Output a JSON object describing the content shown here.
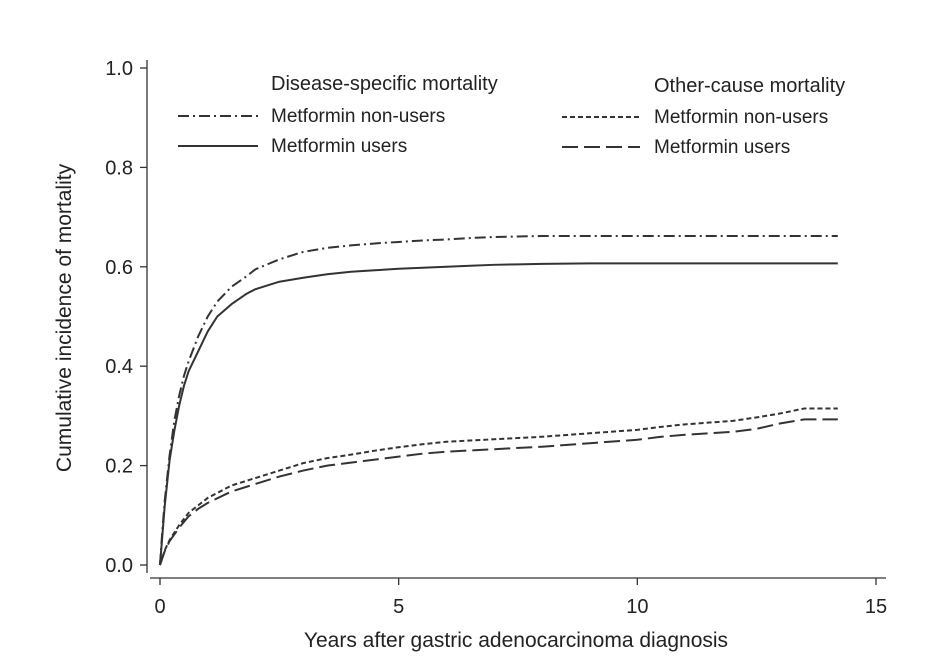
{
  "chart_data": {
    "type": "line",
    "xlabel": "Years after gastric adenocarcinoma diagnosis",
    "ylabel": "Cumulative incidence of mortality",
    "xlim": [
      0,
      15
    ],
    "ylim": [
      0,
      1.0
    ],
    "xticks": [
      "0",
      "5",
      "10",
      "15"
    ],
    "yticks": [
      "0.0",
      "0.2",
      "0.4",
      "0.6",
      "0.8",
      "1.0"
    ],
    "grid": false,
    "legend": {
      "placement": "top",
      "groups": [
        {
          "heading": "Disease-specific mortality",
          "entries": [
            "Metformin non-users",
            "Metformin users"
          ]
        },
        {
          "heading": "Other-cause mortality",
          "entries": [
            "Metformin non-users",
            "Metformin users"
          ]
        }
      ]
    },
    "series": [
      {
        "name": "Metformin non-users",
        "group": "Disease-specific mortality",
        "line_style": "dash-dot",
        "x": [
          0,
          0.05,
          0.1,
          0.2,
          0.3,
          0.4,
          0.5,
          0.6,
          0.8,
          1.0,
          1.2,
          1.5,
          1.8,
          2.0,
          2.5,
          3.0,
          3.5,
          4.0,
          4.5,
          5.0,
          5.5,
          6.0,
          6.5,
          7.0,
          7.5,
          8.0,
          9.0,
          10.0,
          11.0,
          12.0,
          13.0,
          14.2
        ],
        "y": [
          0,
          0.07,
          0.13,
          0.22,
          0.29,
          0.34,
          0.38,
          0.41,
          0.46,
          0.5,
          0.53,
          0.56,
          0.58,
          0.595,
          0.615,
          0.63,
          0.638,
          0.643,
          0.647,
          0.65,
          0.653,
          0.655,
          0.658,
          0.66,
          0.661,
          0.662,
          0.662,
          0.662,
          0.662,
          0.662,
          0.662,
          0.662
        ]
      },
      {
        "name": "Metformin users",
        "group": "Disease-specific mortality",
        "line_style": "solid",
        "x": [
          0,
          0.05,
          0.1,
          0.2,
          0.3,
          0.4,
          0.5,
          0.6,
          0.8,
          1.0,
          1.2,
          1.5,
          1.8,
          2.0,
          2.5,
          3.0,
          3.5,
          4.0,
          4.5,
          5.0,
          5.5,
          6.0,
          6.5,
          7.0,
          7.5,
          8.0,
          9.0,
          10.0,
          11.0,
          12.0,
          13.0,
          14.2
        ],
        "y": [
          0,
          0.06,
          0.12,
          0.21,
          0.27,
          0.32,
          0.36,
          0.39,
          0.43,
          0.47,
          0.5,
          0.525,
          0.545,
          0.555,
          0.57,
          0.578,
          0.585,
          0.59,
          0.593,
          0.596,
          0.598,
          0.6,
          0.602,
          0.604,
          0.605,
          0.606,
          0.607,
          0.607,
          0.607,
          0.607,
          0.607,
          0.607
        ]
      },
      {
        "name": "Metformin non-users",
        "group": "Other-cause mortality",
        "line_style": "short-dash",
        "x": [
          0,
          0.1,
          0.2,
          0.4,
          0.6,
          0.8,
          1.0,
          1.5,
          2.0,
          2.5,
          3.0,
          3.5,
          4.0,
          4.5,
          5.0,
          5.5,
          6.0,
          7.0,
          8.0,
          9.0,
          10.0,
          10.5,
          11.0,
          12.0,
          12.5,
          13.0,
          13.5,
          14.2
        ],
        "y": [
          0,
          0.03,
          0.05,
          0.08,
          0.105,
          0.12,
          0.135,
          0.16,
          0.175,
          0.19,
          0.205,
          0.215,
          0.222,
          0.23,
          0.237,
          0.243,
          0.248,
          0.253,
          0.258,
          0.265,
          0.272,
          0.278,
          0.283,
          0.29,
          0.297,
          0.305,
          0.315,
          0.315
        ]
      },
      {
        "name": "Metformin users",
        "group": "Other-cause mortality",
        "line_style": "long-dash",
        "x": [
          0,
          0.1,
          0.2,
          0.4,
          0.6,
          0.8,
          1.0,
          1.5,
          2.0,
          2.5,
          3.0,
          3.5,
          4.0,
          4.5,
          5.0,
          5.5,
          6.0,
          7.0,
          8.0,
          9.0,
          10.0,
          10.5,
          11.0,
          12.0,
          12.5,
          13.0,
          13.5,
          14.2
        ],
        "y": [
          0,
          0.028,
          0.048,
          0.075,
          0.098,
          0.113,
          0.125,
          0.148,
          0.163,
          0.178,
          0.19,
          0.2,
          0.206,
          0.212,
          0.218,
          0.224,
          0.228,
          0.233,
          0.238,
          0.245,
          0.252,
          0.258,
          0.262,
          0.268,
          0.274,
          0.285,
          0.293,
          0.293
        ]
      }
    ]
  }
}
